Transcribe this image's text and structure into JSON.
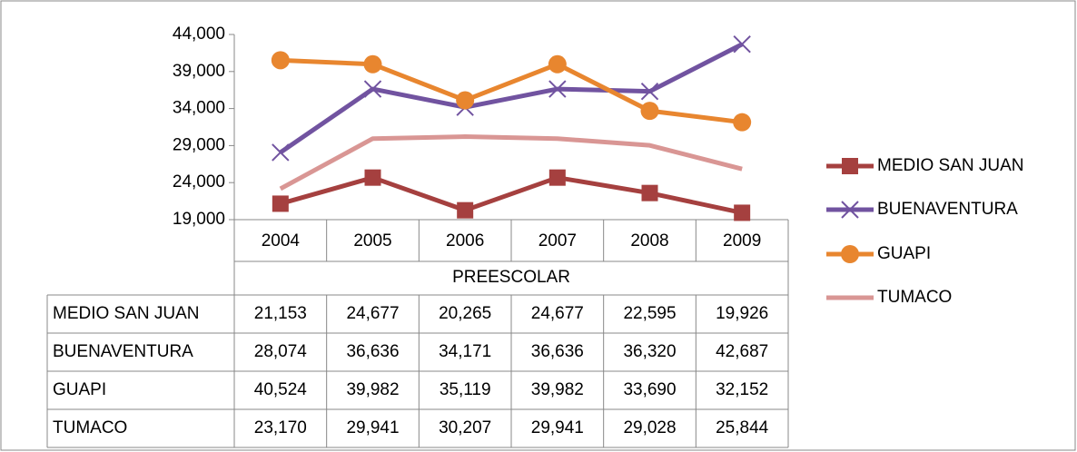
{
  "chart_data": {
    "type": "line",
    "categories": [
      "2004",
      "2005",
      "2006",
      "2007",
      "2008",
      "2009"
    ],
    "category_group": "PREESCOLAR",
    "series": [
      {
        "name": "MEDIO SAN JUAN",
        "color": "#a5403f",
        "marker": "square",
        "values": [
          21153,
          24677,
          20265,
          24677,
          22595,
          19926
        ],
        "value_labels": [
          "21,153",
          "24,677",
          "20,265",
          "24,677",
          "22,595",
          "19,926"
        ]
      },
      {
        "name": "BUENAVENTURA",
        "color": "#7153a0",
        "marker": "x",
        "values": [
          28074,
          36636,
          34171,
          36636,
          36320,
          42687
        ],
        "value_labels": [
          "28,074",
          "36,636",
          "34,171",
          "36,636",
          "36,320",
          "42,687"
        ]
      },
      {
        "name": "GUAPI",
        "color": "#e8862f",
        "marker": "circle",
        "values": [
          40524,
          39982,
          35119,
          39982,
          33690,
          32152
        ],
        "value_labels": [
          "40,524",
          "39,982",
          "35,119",
          "39,982",
          "33,690",
          "32,152"
        ]
      },
      {
        "name": "TUMACO",
        "color": "#d99694",
        "marker": "none",
        "values": [
          23170,
          29941,
          30207,
          29941,
          29028,
          25844
        ],
        "value_labels": [
          "23,170",
          "29,941",
          "30,207",
          "29,941",
          "29,028",
          "25,844"
        ]
      }
    ],
    "ylim": [
      19000,
      44000
    ],
    "yticks": [
      {
        "value": 19000,
        "label": "19,000"
      },
      {
        "value": 24000,
        "label": "24,000"
      },
      {
        "value": 29000,
        "label": "29,000"
      },
      {
        "value": 34000,
        "label": "34,000"
      },
      {
        "value": 39000,
        "label": "39,000"
      },
      {
        "value": 44000,
        "label": "44,000"
      }
    ],
    "legend": "right",
    "grid": false,
    "data_table": true
  }
}
